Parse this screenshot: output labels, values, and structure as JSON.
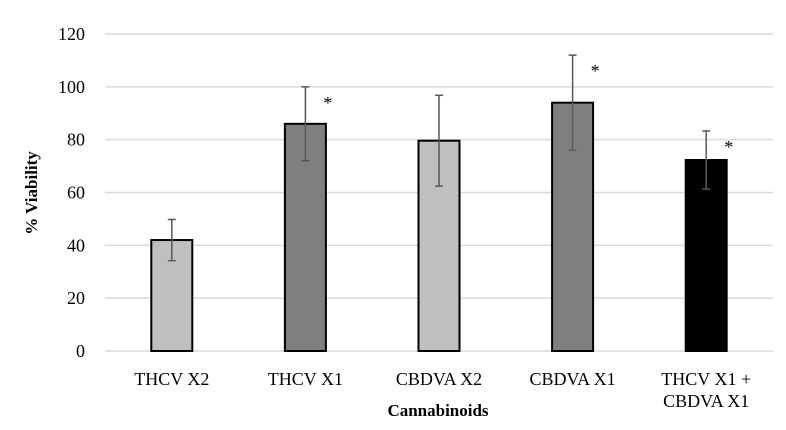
{
  "chart_data": {
    "type": "bar",
    "title": "",
    "xlabel": "Cannabinoids",
    "ylabel": "% Viability",
    "ylim": [
      0,
      120
    ],
    "yticks": [
      0,
      20,
      40,
      60,
      80,
      100,
      120
    ],
    "grid": true,
    "categories": [
      [
        "THCV X2"
      ],
      [
        "THCV X1"
      ],
      [
        "CBDVA X2"
      ],
      [
        "CBDVA X1"
      ],
      [
        "THCV X1 +",
        "CBDVA X1"
      ]
    ],
    "values": [
      42,
      86,
      79.6,
      94,
      72.3
    ],
    "errors": [
      7.8,
      14,
      17.2,
      18,
      11
    ],
    "significant": [
      false,
      true,
      false,
      true,
      true
    ],
    "significance_marker": "*",
    "colors": [
      "#bfbfbf",
      "#7f7f7f",
      "#bfbfbf",
      "#7f7f7f",
      "#000000"
    ]
  }
}
